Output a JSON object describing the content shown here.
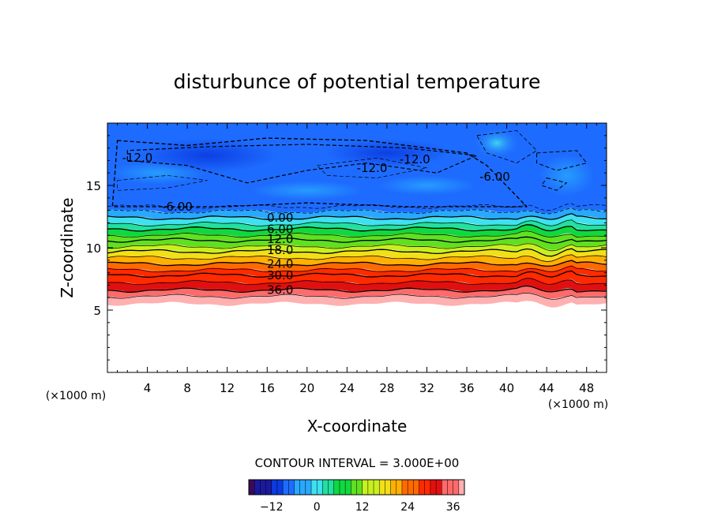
{
  "chart_data": {
    "type": "heatmap",
    "title": "disturbunce of potential temperature",
    "xlabel": "X-coordinate",
    "ylabel": "Z-coordinate",
    "x_unit": "(×1000 m)",
    "y_unit": "(×1000 m)",
    "xlim": [
      0,
      50
    ],
    "ylim": [
      0,
      20
    ],
    "x_ticks": [
      4,
      8,
      12,
      16,
      20,
      24,
      28,
      32,
      36,
      40,
      44,
      48
    ],
    "y_ticks": [
      5,
      10,
      15
    ],
    "contour_interval_label": "CONTOUR INTERVAL = 3.000E+00",
    "colorbar": {
      "min": -18,
      "max": 39,
      "ticks": [
        -12,
        0,
        12,
        24,
        36
      ],
      "colors": [
        "#3a0a5a",
        "#1a1a9e",
        "#0a3ae0",
        "#1e6cff",
        "#29a8ff",
        "#3fe0f0",
        "#22e0a0",
        "#10d840",
        "#60e020",
        "#c8f020",
        "#f0e018",
        "#ffb000",
        "#ff6a00",
        "#ff2a00",
        "#e01010",
        "#ff6a6a",
        "#ffb0b0"
      ]
    },
    "contour_labels": [
      {
        "text": "-12.0",
        "x": 3.0,
        "z": 17.2
      },
      {
        "text": "-12.0",
        "x": 30.8,
        "z": 17.1
      },
      {
        "text": "-12.0",
        "x": 26.5,
        "z": 16.4
      },
      {
        "text": "-6.00",
        "x": 7.0,
        "z": 13.3
      },
      {
        "text": "-6.00",
        "x": 38.8,
        "z": 15.7
      },
      {
        "text": "0.00",
        "x": 17.3,
        "z": 12.4
      },
      {
        "text": "6.00",
        "x": 17.3,
        "z": 11.5
      },
      {
        "text": "12.0",
        "x": 17.3,
        "z": 10.7
      },
      {
        "text": "18.0",
        "x": 17.3,
        "z": 9.8
      },
      {
        "text": "24.0",
        "x": 17.3,
        "z": 8.7
      },
      {
        "text": "30.0",
        "x": 17.3,
        "z": 7.8
      },
      {
        "text": "36.0",
        "x": 17.3,
        "z": 6.6
      }
    ],
    "bands": [
      {
        "value": -6,
        "z_lo": 12.9,
        "z_hi": 13.3
      },
      {
        "value": -3,
        "z_lo": 12.4,
        "z_hi": 12.9
      },
      {
        "value": 0,
        "z_lo": 11.9,
        "z_hi": 12.4
      },
      {
        "value": 3,
        "z_lo": 11.5,
        "z_hi": 11.9
      },
      {
        "value": 6,
        "z_lo": 11.0,
        "z_hi": 11.5
      },
      {
        "value": 9,
        "z_lo": 10.6,
        "z_hi": 11.0
      },
      {
        "value": 12,
        "z_lo": 10.1,
        "z_hi": 10.6
      },
      {
        "value": 15,
        "z_lo": 9.7,
        "z_hi": 10.1
      },
      {
        "value": 18,
        "z_lo": 9.2,
        "z_hi": 9.7
      },
      {
        "value": 21,
        "z_lo": 8.7,
        "z_hi": 9.2
      },
      {
        "value": 24,
        "z_lo": 8.2,
        "z_hi": 8.7
      },
      {
        "value": 27,
        "z_lo": 7.8,
        "z_hi": 8.2
      },
      {
        "value": 30,
        "z_lo": 7.2,
        "z_hi": 7.8
      },
      {
        "value": 33,
        "z_lo": 6.6,
        "z_hi": 7.2
      },
      {
        "value": 36,
        "z_lo": 6.1,
        "z_hi": 6.6
      },
      {
        "value": 39,
        "z_lo": 5.5,
        "z_hi": 6.1
      }
    ],
    "upper_region": {
      "z_lo": 13.0,
      "z_hi": 19.8,
      "value": -9
    },
    "empty_below_z": 5.5
  }
}
